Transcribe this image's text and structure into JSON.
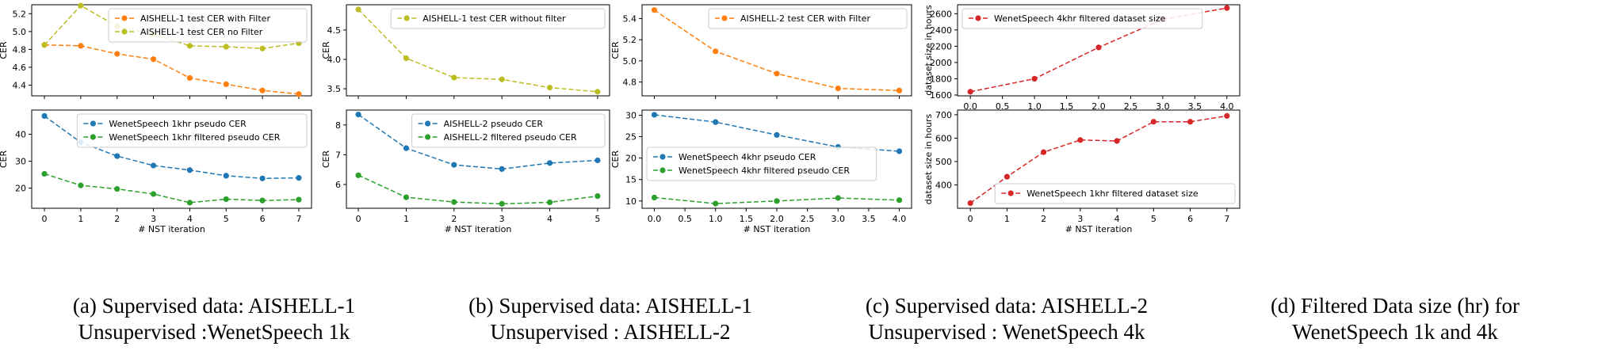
{
  "colors": {
    "orange": "#ff7f0e",
    "olive": "#bcbd22",
    "blue": "#1f77b4",
    "green": "#2ca02c",
    "red": "#d62728"
  },
  "chart_data": [
    {
      "type": "line",
      "panel": "a-top",
      "xlabel": "",
      "ylabel": "CER",
      "x": [
        0,
        1,
        2,
        3,
        4,
        5,
        6,
        7
      ],
      "xlim": [
        -0.35,
        7.35
      ],
      "ylim": [
        4.28,
        5.3
      ],
      "xticks": [],
      "yticks": [
        "4.4",
        "4.6",
        "4.8",
        "5.0",
        "5.2"
      ],
      "legend": "top-right",
      "series": [
        {
          "name": "AISHELL-1 test CER with Filter",
          "color": "#ff7f0e",
          "values": [
            4.85,
            4.84,
            4.75,
            4.69,
            4.48,
            4.41,
            4.34,
            4.3
          ]
        },
        {
          "name": "AISHELL-1 test CER no Filter",
          "color": "#bcbd22",
          "values": [
            4.85,
            5.29,
            5.06,
            4.97,
            4.84,
            4.83,
            4.81,
            4.87
          ]
        }
      ]
    },
    {
      "type": "line",
      "panel": "a-bottom",
      "xlabel": "# NST iteration",
      "ylabel": "CER",
      "x": [
        0,
        1,
        2,
        3,
        4,
        5,
        6,
        7
      ],
      "xlim": [
        -0.35,
        7.35
      ],
      "ylim": [
        12.5,
        49
      ],
      "xticks": [
        "0",
        "1",
        "2",
        "3",
        "4",
        "5",
        "6",
        "7"
      ],
      "yticks": [
        "20",
        "30",
        "40"
      ],
      "legend": "top-right",
      "series": [
        {
          "name": "WenetSpeech 1khr pseudo CER",
          "color": "#1f77b4",
          "values": [
            46.8,
            37.0,
            31.9,
            28.4,
            26.7,
            24.6,
            23.6,
            23.8
          ]
        },
        {
          "name": "WenetSpeech 1khr filtered pseudo CER",
          "color": "#2ca02c",
          "values": [
            25.3,
            21.0,
            19.7,
            17.8,
            14.6,
            15.9,
            15.4,
            15.7
          ]
        }
      ]
    },
    {
      "type": "line",
      "panel": "b-top",
      "xlabel": "",
      "ylabel": "CER",
      "x": [
        0,
        1,
        2,
        3,
        4,
        5
      ],
      "xlim": [
        -0.25,
        5.25
      ],
      "ylim": [
        3.38,
        4.93
      ],
      "xticks": [],
      "yticks": [
        "3.5",
        "4.0",
        "4.5"
      ],
      "legend": "top-right",
      "series": [
        {
          "name": "AISHELL-1 test CER without filter",
          "color": "#bcbd22",
          "values": [
            4.85,
            4.02,
            3.69,
            3.66,
            3.52,
            3.45
          ]
        }
      ]
    },
    {
      "type": "line",
      "panel": "b-bottom",
      "xlabel": "# NST iteration",
      "ylabel": "CER",
      "x": [
        0,
        1,
        2,
        3,
        4,
        5
      ],
      "xlim": [
        -0.25,
        5.25
      ],
      "ylim": [
        5.2,
        8.5
      ],
      "xticks": [
        "0",
        "1",
        "2",
        "3",
        "4",
        "5"
      ],
      "yticks": [
        "6",
        "7",
        "8"
      ],
      "legend": "top-right",
      "series": [
        {
          "name": "AISHELL-2 pseudo CER",
          "color": "#1f77b4",
          "values": [
            8.35,
            7.22,
            6.66,
            6.52,
            6.72,
            6.81
          ]
        },
        {
          "name": "AISHELL-2 filtered pseudo CER",
          "color": "#2ca02c",
          "values": [
            6.31,
            5.57,
            5.41,
            5.35,
            5.4,
            5.61
          ]
        }
      ]
    },
    {
      "type": "line",
      "panel": "c-top",
      "xlabel": "",
      "ylabel": "CER",
      "x": [
        0.0,
        1.0,
        2.0,
        3.0,
        4.0
      ],
      "xlim": [
        -0.2,
        4.2
      ],
      "ylim": [
        4.67,
        5.53
      ],
      "xticks": [],
      "yticks": [
        "4.8",
        "5.0",
        "5.2",
        "5.4"
      ],
      "legend": "top-right",
      "series": [
        {
          "name": "AISHELL-2 test CER with Filter",
          "color": "#ff7f0e",
          "values": [
            5.48,
            5.09,
            4.88,
            4.74,
            4.72
          ]
        }
      ]
    },
    {
      "type": "line",
      "panel": "c-bottom",
      "xlabel": "# NST iteration",
      "ylabel": "CER",
      "x": [
        0.0,
        1.0,
        2.0,
        3.0,
        4.0
      ],
      "xlim": [
        -0.2,
        4.2
      ],
      "ylim": [
        8.3,
        31.2
      ],
      "xticks": [
        "0.0",
        "0.5",
        "1.0",
        "1.5",
        "2.0",
        "2.5",
        "3.0",
        "3.5",
        "4.0"
      ],
      "yticks": [
        "10",
        "15",
        "20",
        "25",
        "30"
      ],
      "legend": "center-left",
      "series": [
        {
          "name": "WenetSpeech 4khr pseudo CER",
          "color": "#1f77b4",
          "values": [
            30.1,
            28.4,
            25.4,
            22.6,
            21.6
          ]
        },
        {
          "name": "WenetSpeech 4khr filtered pseudo CER",
          "color": "#2ca02c",
          "values": [
            10.8,
            9.4,
            10.0,
            10.7,
            10.2
          ]
        }
      ]
    },
    {
      "type": "line",
      "panel": "d-top",
      "xlabel": "",
      "ylabel": "dataset size in hours",
      "x": [
        0.0,
        1.0,
        2.0,
        3.0,
        4.0
      ],
      "xlim": [
        -0.2,
        4.2
      ],
      "ylim": [
        1590,
        2710
      ],
      "xticks": [
        "0.0",
        "0.5",
        "1.0",
        "1.5",
        "2.0",
        "2.5",
        "3.0",
        "3.5",
        "4.0"
      ],
      "yticks": [
        "1600",
        "1800",
        "2000",
        "2200",
        "2400",
        "2600"
      ],
      "legend": "top-left",
      "series": [
        {
          "name": "WenetSpeech 4khr filtered dataset size",
          "color": "#d62728",
          "values": [
            1640,
            1800,
            2185,
            2530,
            2670
          ]
        }
      ]
    },
    {
      "type": "line",
      "panel": "d-bottom",
      "xlabel": "# NST iteration",
      "ylabel": "dataset size in hours",
      "x": [
        0,
        1,
        2,
        3,
        4,
        5,
        6,
        7
      ],
      "xlim": [
        -0.35,
        7.35
      ],
      "ylim": [
        300,
        720
      ],
      "xticks": [
        "0",
        "1",
        "2",
        "3",
        "4",
        "5",
        "6",
        "7"
      ],
      "yticks": [
        "400",
        "500",
        "600",
        "700"
      ],
      "legend": "bottom-right",
      "series": [
        {
          "name": "WenetSpeech 1khr filtered dataset size",
          "color": "#d62728",
          "values": [
            322,
            435,
            540,
            592,
            588,
            670,
            670,
            695
          ]
        }
      ]
    }
  ],
  "captions": {
    "a": {
      "line1": "(a)  Supervised data: AISHELL-1",
      "line2": "Unsupervised :WenetSpeech 1k"
    },
    "b": {
      "line1": "(b)  Supervised data: AISHELL-1",
      "line2": "Unsupervised : AISHELL-2"
    },
    "c": {
      "line1": "(c)  Supervised data: AISHELL-2",
      "line2": "Unsupervised : WenetSpeech 4k"
    },
    "d": {
      "line1": "(d)  Filtered Data size (hr) for",
      "line2": "WenetSpeech 1k and 4k"
    }
  }
}
